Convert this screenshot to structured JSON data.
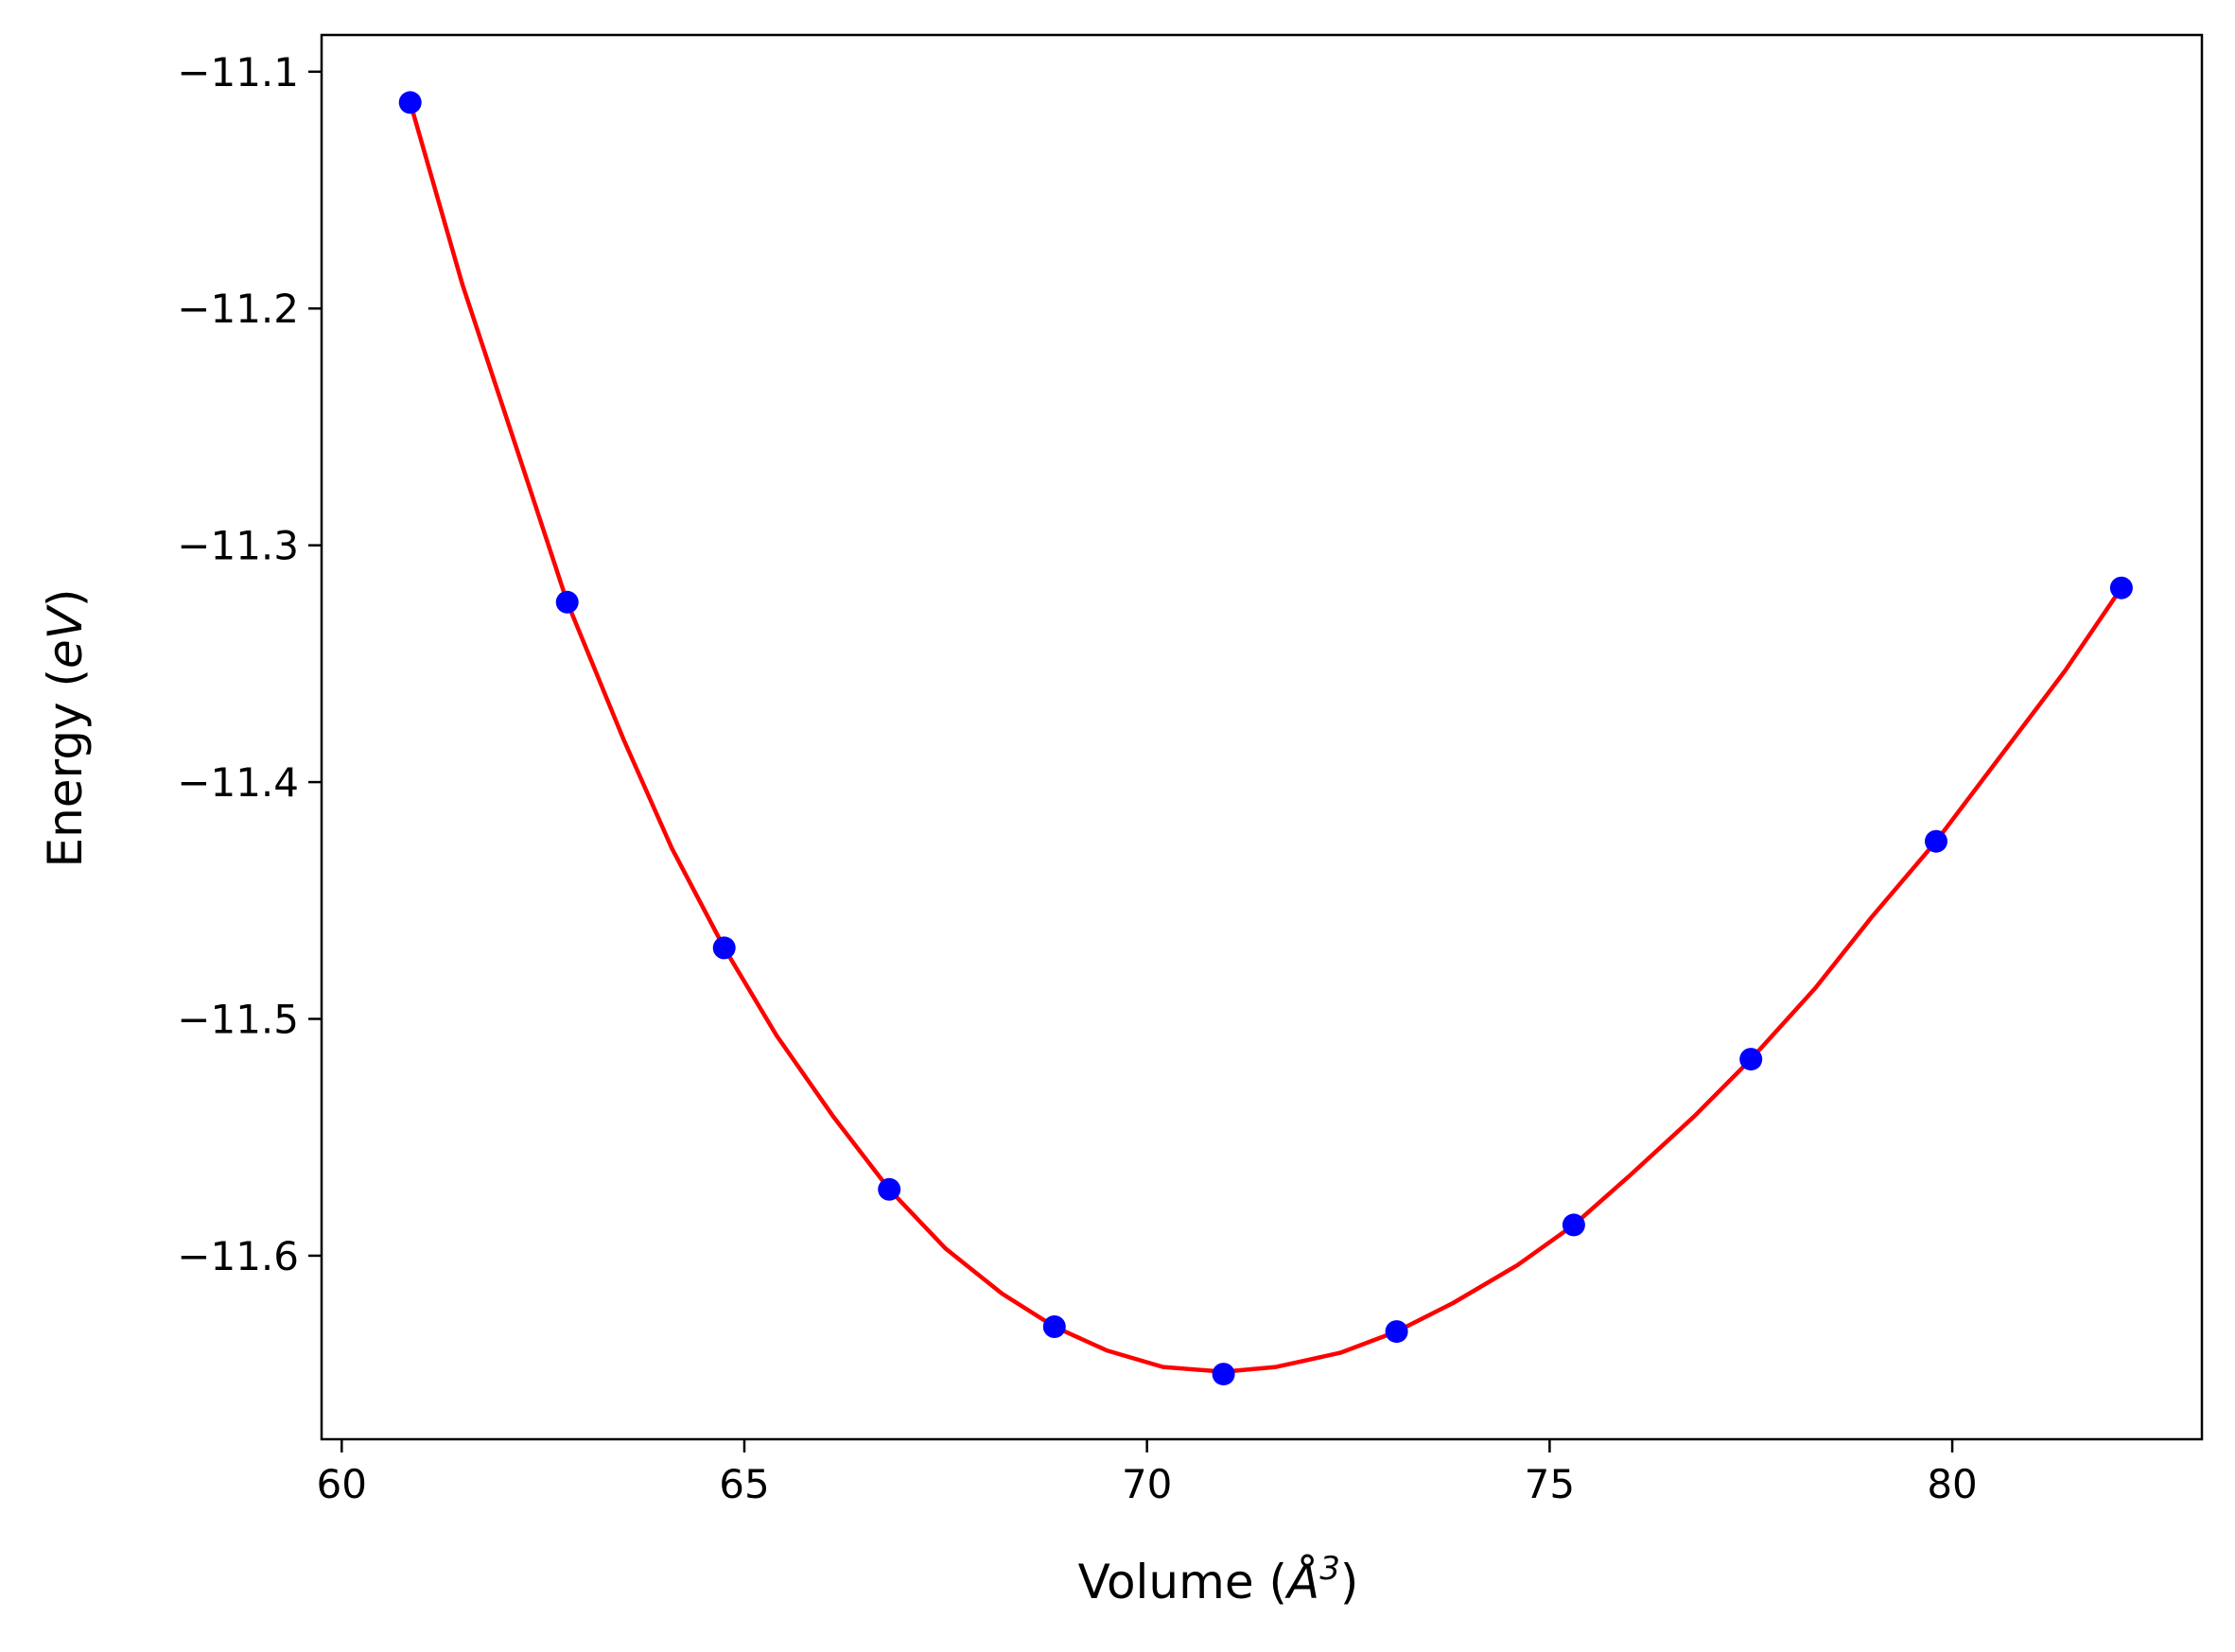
{
  "chart_data": {
    "type": "scatter",
    "title": "",
    "xlabel": {
      "prefix": "Volume (",
      "unit": "Å",
      "sup": "3",
      "suffix": ")"
    },
    "ylabel": {
      "prefix": "Energy (",
      "unit": "eV",
      "suffix": ")"
    },
    "xlim": [
      59.75,
      83.1
    ],
    "ylim": [
      -11.6775,
      -11.0845
    ],
    "xticks": [
      60,
      65,
      70,
      75,
      80
    ],
    "xtick_labels": [
      "60",
      "65",
      "70",
      "75",
      "80"
    ],
    "yticks": [
      -11.1,
      -11.2,
      -11.3,
      -11.4,
      -11.5,
      -11.6
    ],
    "ytick_labels": [
      "−11.1",
      "−11.2",
      "−11.3",
      "−11.4",
      "−11.5",
      "−11.6"
    ],
    "grid": false,
    "legend": "none",
    "series": [
      {
        "kind": "markers",
        "color": "#0000ff",
        "x": [
          60.85,
          62.8,
          64.75,
          66.8,
          68.85,
          70.95,
          73.1,
          75.3,
          77.5,
          79.8,
          82.1
        ],
        "y": [
          -11.113,
          -11.324,
          -11.47,
          -11.572,
          -11.63,
          -11.65,
          -11.632,
          -11.587,
          -11.517,
          -11.425,
          -11.318
        ]
      },
      {
        "kind": "fit-line",
        "color": "#ff0000",
        "x": [
          60.85,
          61.5,
          62.2,
          62.8,
          63.5,
          64.1,
          64.75,
          65.4,
          66.1,
          66.8,
          67.5,
          68.2,
          68.85,
          69.5,
          70.2,
          70.95,
          71.6,
          72.4,
          73.1,
          73.8,
          74.6,
          75.3,
          76.0,
          76.8,
          77.5,
          78.3,
          79.0,
          79.8,
          80.6,
          81.4,
          82.1
        ],
        "y": [
          -11.113,
          -11.19,
          -11.262,
          -11.324,
          -11.382,
          -11.428,
          -11.47,
          -11.507,
          -11.541,
          -11.572,
          -11.597,
          -11.616,
          -11.63,
          -11.64,
          -11.647,
          -11.649,
          -11.647,
          -11.641,
          -11.632,
          -11.62,
          -11.604,
          -11.587,
          -11.566,
          -11.541,
          -11.517,
          -11.487,
          -11.457,
          -11.425,
          -11.389,
          -11.353,
          -11.318
        ]
      }
    ]
  }
}
